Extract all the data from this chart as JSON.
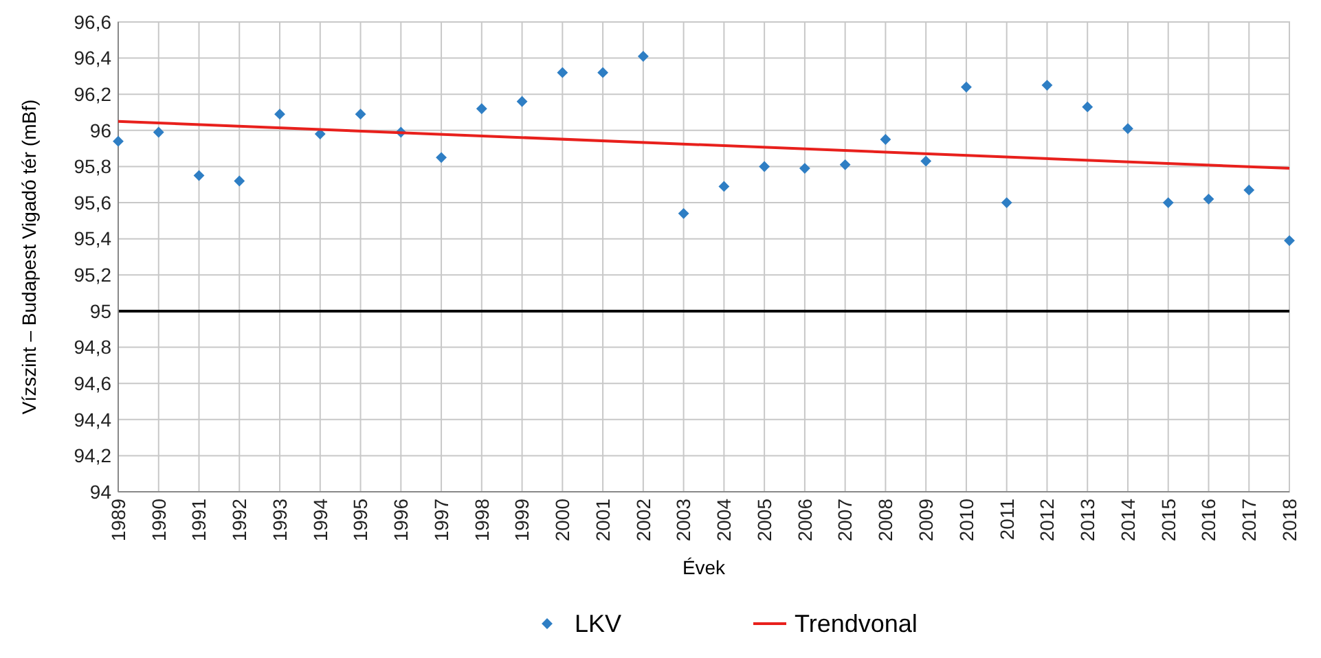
{
  "chart_data": {
    "type": "scatter",
    "xlabel": "Évek",
    "ylabel": "Vízszint – Budapest Vigadó tér (mBf)",
    "x": [
      1989,
      1990,
      1991,
      1992,
      1993,
      1994,
      1995,
      1996,
      1997,
      1998,
      1999,
      2000,
      2001,
      2002,
      2003,
      2004,
      2005,
      2006,
      2007,
      2008,
      2009,
      2010,
      2011,
      2012,
      2013,
      2014,
      2015,
      2016,
      2017,
      2018
    ],
    "series": [
      {
        "name": "LKV",
        "color": "#2e7ec4",
        "marker": "diamond",
        "values": [
          95.94,
          95.99,
          95.75,
          95.72,
          96.09,
          95.98,
          96.09,
          95.99,
          95.85,
          96.12,
          96.16,
          96.32,
          96.32,
          96.41,
          95.54,
          95.69,
          95.8,
          95.79,
          95.81,
          95.95,
          95.83,
          96.24,
          95.6,
          96.25,
          96.13,
          96.01,
          95.6,
          95.62,
          95.67,
          95.39
        ]
      },
      {
        "name": "Trendvonal",
        "color": "#e8201c",
        "type": "line",
        "marker": "none",
        "x": [
          1989,
          2018
        ],
        "values": [
          96.05,
          95.79
        ]
      }
    ],
    "xlim": [
      1989,
      2018
    ],
    "xticks": [
      1989,
      1990,
      1991,
      1992,
      1993,
      1994,
      1995,
      1996,
      1997,
      1998,
      1999,
      2000,
      2001,
      2002,
      2003,
      2004,
      2005,
      2006,
      2007,
      2008,
      2009,
      2010,
      2011,
      2012,
      2013,
      2014,
      2015,
      2016,
      2017,
      2018
    ],
    "ylim": [
      94,
      96.6
    ],
    "yticks": [
      94,
      {
        "value": 94.2,
        "label": "94,2"
      },
      {
        "value": 94.4,
        "label": "94,4"
      },
      {
        "value": 94.6,
        "label": "94,6"
      },
      {
        "value": 94.8,
        "label": "94,8"
      },
      95,
      {
        "value": 95.2,
        "label": "95,2"
      },
      {
        "value": 95.4,
        "label": "95,4"
      },
      {
        "value": 95.6,
        "label": "95,6"
      },
      {
        "value": 95.8,
        "label": "95,8"
      },
      96,
      {
        "value": 96.2,
        "label": "96,2"
      },
      {
        "value": 96.4,
        "label": "96,4"
      },
      {
        "value": 96.6,
        "label": "96,6"
      }
    ],
    "ref_lines": [
      {
        "axis": "y",
        "value": 95,
        "color": "#000000"
      }
    ],
    "grid": true,
    "legend": "bottom"
  }
}
